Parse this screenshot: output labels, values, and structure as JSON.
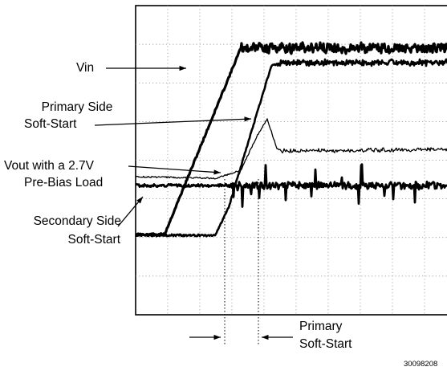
{
  "chart_data": {
    "type": "line",
    "title": "",
    "xlabel": "",
    "ylabel": "",
    "grid": true,
    "grid_divisions": {
      "x": 10,
      "y": 8
    },
    "series": [
      {
        "name": "Vin",
        "role": "vin"
      },
      {
        "name": "Vout with a 2.7V Pre-Bias Load",
        "role": "vout"
      },
      {
        "name": "Primary Side Soft-Start",
        "role": "primary"
      },
      {
        "name": "Secondary Side Soft-Start",
        "role": "secondary"
      }
    ],
    "annotations": {
      "vin": "Vin",
      "primary_line1": "Primary Side",
      "primary_line2": "Soft-Start",
      "vout_line1": "Vout with a 2.7V",
      "vout_line2": "Pre-Bias Load",
      "secondary_line1": "Secondary Side",
      "secondary_line2": "Soft-Start",
      "bottom_line1": "Primary",
      "bottom_line2": "Soft-Start"
    },
    "figure_number": "30098208"
  }
}
